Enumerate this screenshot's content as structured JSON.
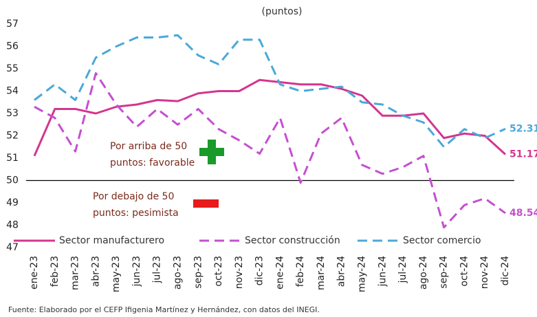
{
  "chart_data": {
    "type": "line",
    "title": "(puntos)",
    "categories": [
      "ene-23",
      "feb-23",
      "mar-23",
      "abr-23",
      "may-23",
      "jun-23",
      "jul-23",
      "ago-23",
      "sep-23",
      "oct-23",
      "nov-23",
      "dic-23",
      "ene-24",
      "feb-24",
      "mar-24",
      "abr-24",
      "may-24",
      "jun-24",
      "jul-24",
      "ago-24",
      "sep-24",
      "oct-24",
      "nov-24",
      "dic-24"
    ],
    "series": [
      {
        "name": "Sector manufacturero",
        "color": "#d4358f",
        "dash": "solid",
        "values": [
          51.1,
          53.2,
          53.2,
          53.0,
          53.3,
          53.4,
          53.6,
          53.55,
          53.9,
          54.0,
          54.0,
          54.5,
          54.4,
          54.3,
          54.3,
          54.1,
          53.8,
          52.9,
          52.9,
          53.0,
          51.9,
          52.1,
          52.0,
          51.17
        ]
      },
      {
        "name": "Sector construcción",
        "color": "#c44fd0",
        "dash": "dashed",
        "values": [
          53.3,
          52.8,
          51.3,
          54.8,
          53.4,
          52.4,
          53.2,
          52.5,
          53.2,
          52.3,
          51.8,
          51.2,
          52.8,
          49.9,
          52.1,
          52.8,
          50.7,
          50.3,
          50.6,
          51.1,
          47.9,
          48.9,
          49.2,
          48.54
        ]
      },
      {
        "name": "Sector comercio",
        "color": "#4aa8d8",
        "dash": "dashed",
        "values": [
          53.6,
          54.3,
          53.6,
          55.5,
          56.0,
          56.4,
          56.4,
          56.5,
          55.6,
          55.2,
          56.3,
          56.3,
          54.3,
          54.0,
          54.1,
          54.2,
          53.5,
          53.4,
          52.9,
          52.6,
          51.5,
          52.3,
          51.9,
          52.31
        ]
      }
    ],
    "ylim": [
      47,
      57
    ],
    "yticks": [
      47,
      48,
      49,
      50,
      51,
      52,
      53,
      54,
      55,
      56,
      57
    ],
    "reference_line": 50,
    "legend": "bottom",
    "annotations": [
      {
        "lines": [
          "Por arriba de 50",
          "puntos: favorable"
        ]
      },
      {
        "lines": [
          "Por debajo de 50",
          "puntos: pesimista"
        ]
      }
    ],
    "source": "Fuente: Elaborado por el CEFP Ifigenia Martínez y Hernández, con datos del INEGI."
  }
}
